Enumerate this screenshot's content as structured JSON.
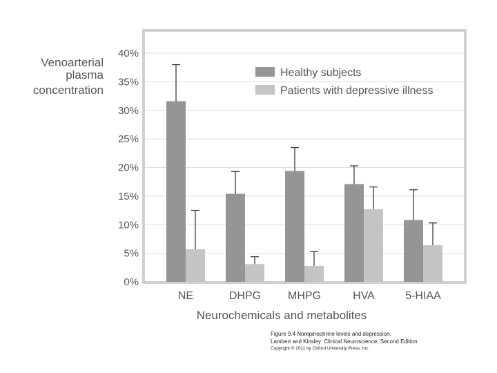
{
  "chart_data": {
    "type": "bar",
    "title": "",
    "ylabel_lines": [
      "Venoarterial",
      "plasma",
      "concentration"
    ],
    "xlabel": "Neurochemicals and metabolites",
    "ylim": [
      0,
      40
    ],
    "yticks": [
      0,
      5,
      10,
      15,
      20,
      25,
      30,
      35,
      40
    ],
    "tick_suffix": "%",
    "grid": true,
    "legend_position": "top-right",
    "categories": [
      "NE",
      "DHPG",
      "MHPG",
      "HVA",
      "5-HIAA"
    ],
    "series": [
      {
        "name": "Healthy subjects",
        "color": "#959595",
        "values": [
          31.6,
          15.4,
          19.4,
          17.1,
          10.8
        ],
        "errors": [
          6.4,
          3.9,
          4.1,
          3.2,
          5.3
        ]
      },
      {
        "name": "Patients with depressive illness",
        "color": "#c4c4c4",
        "values": [
          5.7,
          3.1,
          2.8,
          12.7,
          6.4
        ],
        "errors": [
          6.8,
          1.3,
          2.5,
          3.9,
          3.9
        ]
      }
    ]
  },
  "caption": {
    "line1": "Figure 9.4  Norepinephrine levels and depression.",
    "line2": "Lambert and Kinsley: Clinical Neuroscience, Second Edition",
    "line3": "Copyright © 2011 by Oxford University Press, Inc."
  },
  "colors": {
    "plot_border": "#d0d0d0",
    "grid": "#dedede",
    "text": "#555555",
    "error_bar": "#3a3a3a"
  }
}
